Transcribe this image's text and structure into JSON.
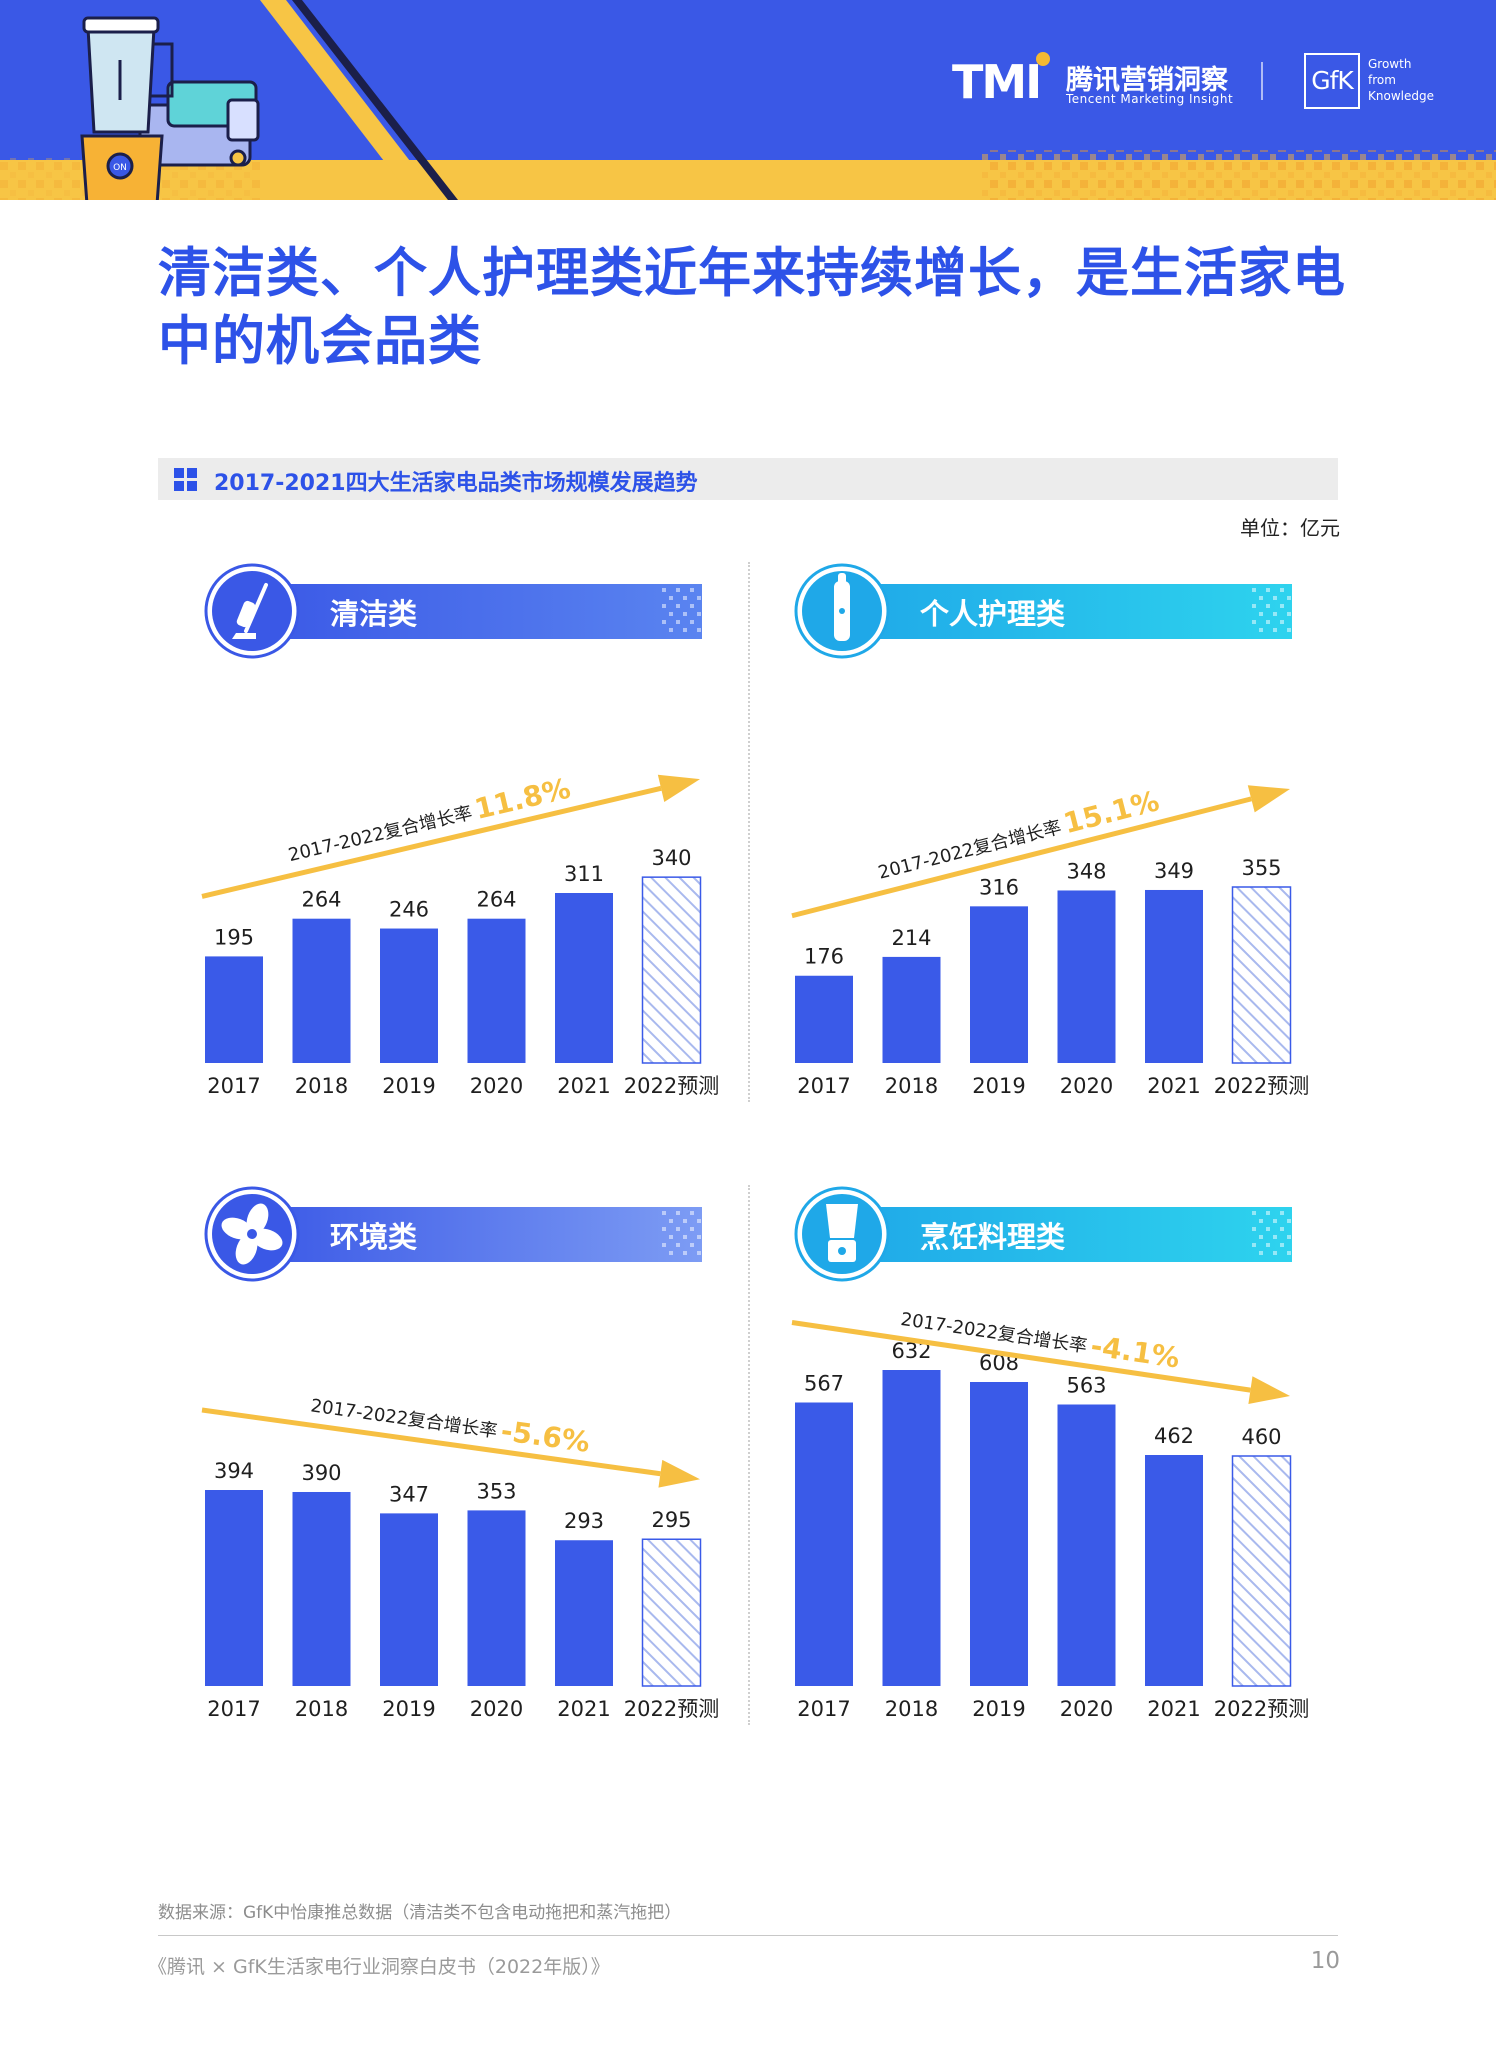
{
  "header": {
    "logo_text": "TMI",
    "brand_name": "腾讯营销洞察",
    "brand_sub": "Tencent Marketing Insight",
    "partner_logo": "GfK",
    "partner_tagline": "Growth\nfrom\nKnowledge",
    "illustration": "blender-and-sandwich-maker-icon"
  },
  "title": "清洁类、个人护理类近年来持续增长，是生活家电中的机会品类",
  "section_title": "2017-2021四大生活家电品类市场规模发展趋势",
  "unit": "单位：亿元",
  "colors": {
    "accent": "#2d52e8",
    "bar": "#3a5ae8",
    "forecast_stripe": "#a9b9ee",
    "arrow": "#f6bf42",
    "header_blue": "#3a58e6",
    "header_yellow": "#f7c545"
  },
  "chart_data": [
    {
      "type": "bar",
      "title": "清洁类",
      "icon": "vacuum-cleaner-icon",
      "categories": [
        "2017",
        "2018",
        "2019",
        "2020",
        "2021",
        "2022预测"
      ],
      "values": [
        195,
        264,
        246,
        264,
        311,
        340
      ],
      "forecast": [
        false,
        false,
        false,
        false,
        false,
        true
      ],
      "cagr_label": "2017-2022复合增长率",
      "cagr_value": "11.8%",
      "trend": "up"
    },
    {
      "type": "bar",
      "title": "个人护理类",
      "icon": "electric-toothbrush-icon",
      "categories": [
        "2017",
        "2018",
        "2019",
        "2020",
        "2021",
        "2022预测"
      ],
      "values": [
        176,
        214,
        316,
        348,
        349,
        355
      ],
      "forecast": [
        false,
        false,
        false,
        false,
        false,
        true
      ],
      "cagr_label": "2017-2022复合增长率",
      "cagr_value": "15.1%",
      "trend": "up"
    },
    {
      "type": "bar",
      "title": "环境类",
      "icon": "fan-icon",
      "categories": [
        "2017",
        "2018",
        "2019",
        "2020",
        "2021",
        "2022预测"
      ],
      "values": [
        394,
        390,
        347,
        353,
        293,
        295
      ],
      "forecast": [
        false,
        false,
        false,
        false,
        false,
        true
      ],
      "cagr_label": "2017-2022复合增长率",
      "cagr_value": "-5.6%",
      "trend": "down"
    },
    {
      "type": "bar",
      "title": "烹饪料理类",
      "icon": "blender-icon",
      "categories": [
        "2017",
        "2018",
        "2019",
        "2020",
        "2021",
        "2022预测"
      ],
      "values": [
        567,
        632,
        608,
        563,
        462,
        460
      ],
      "forecast": [
        false,
        false,
        false,
        false,
        false,
        true
      ],
      "cagr_label": "2017-2022复合增长率",
      "cagr_value": "-4.1%",
      "trend": "down"
    }
  ],
  "source": "数据来源：GfK中怡康推总数据（清洁类不包含电动拖把和蒸汽拖把）",
  "footer": {
    "publication": "《腾讯 × GfK生活家电行业洞察白皮书（2022年版）》",
    "page_number": "10"
  }
}
